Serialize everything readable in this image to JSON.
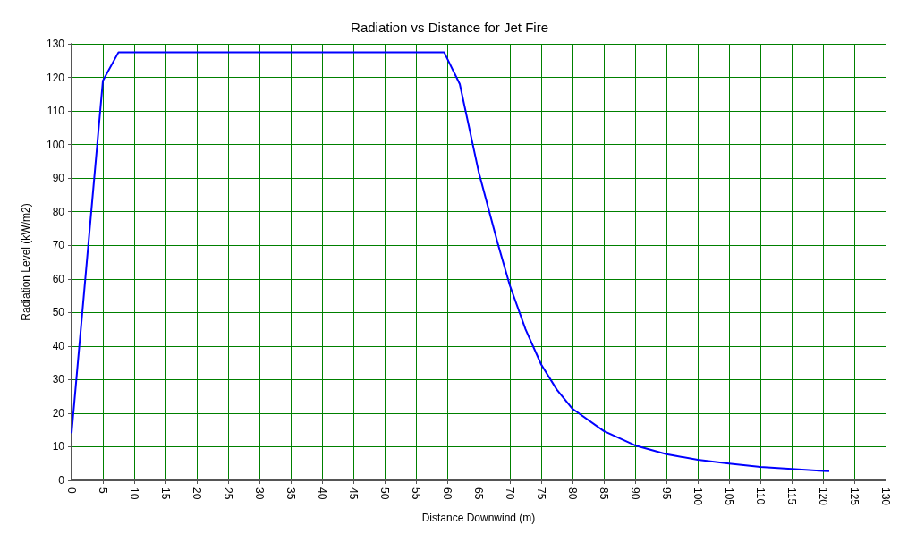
{
  "chart_data": {
    "type": "line",
    "title": "Radiation vs Distance for Jet Fire",
    "xlabel": "Distance Downwind (m)",
    "ylabel": "Radiation Level (kW/m2)",
    "series": [
      {
        "color": "#0000ff",
        "x": [
          0,
          5,
          7.5,
          59.5,
          62,
          65,
          68,
          70,
          72.5,
          75,
          77.5,
          80,
          85,
          90,
          95,
          100,
          105,
          110,
          115,
          120,
          121
        ],
        "values": [
          14,
          119,
          127.5,
          127.5,
          118,
          92,
          71,
          58,
          45,
          34.5,
          27,
          21.3,
          14.7,
          10.4,
          7.8,
          6.1,
          5,
          4,
          3.4,
          2.8,
          2.7
        ]
      }
    ],
    "xlim": [
      0,
      130
    ],
    "xticks": [
      0,
      5,
      10,
      15,
      20,
      25,
      30,
      35,
      40,
      45,
      50,
      55,
      60,
      65,
      70,
      75,
      80,
      85,
      90,
      95,
      100,
      105,
      110,
      115,
      120,
      125,
      130
    ],
    "ylim": [
      0,
      130
    ],
    "yticks": [
      0,
      10,
      20,
      30,
      40,
      50,
      60,
      70,
      80,
      90,
      100,
      110,
      120,
      130
    ],
    "grid": true,
    "marker": "none",
    "line_style": "solid"
  }
}
